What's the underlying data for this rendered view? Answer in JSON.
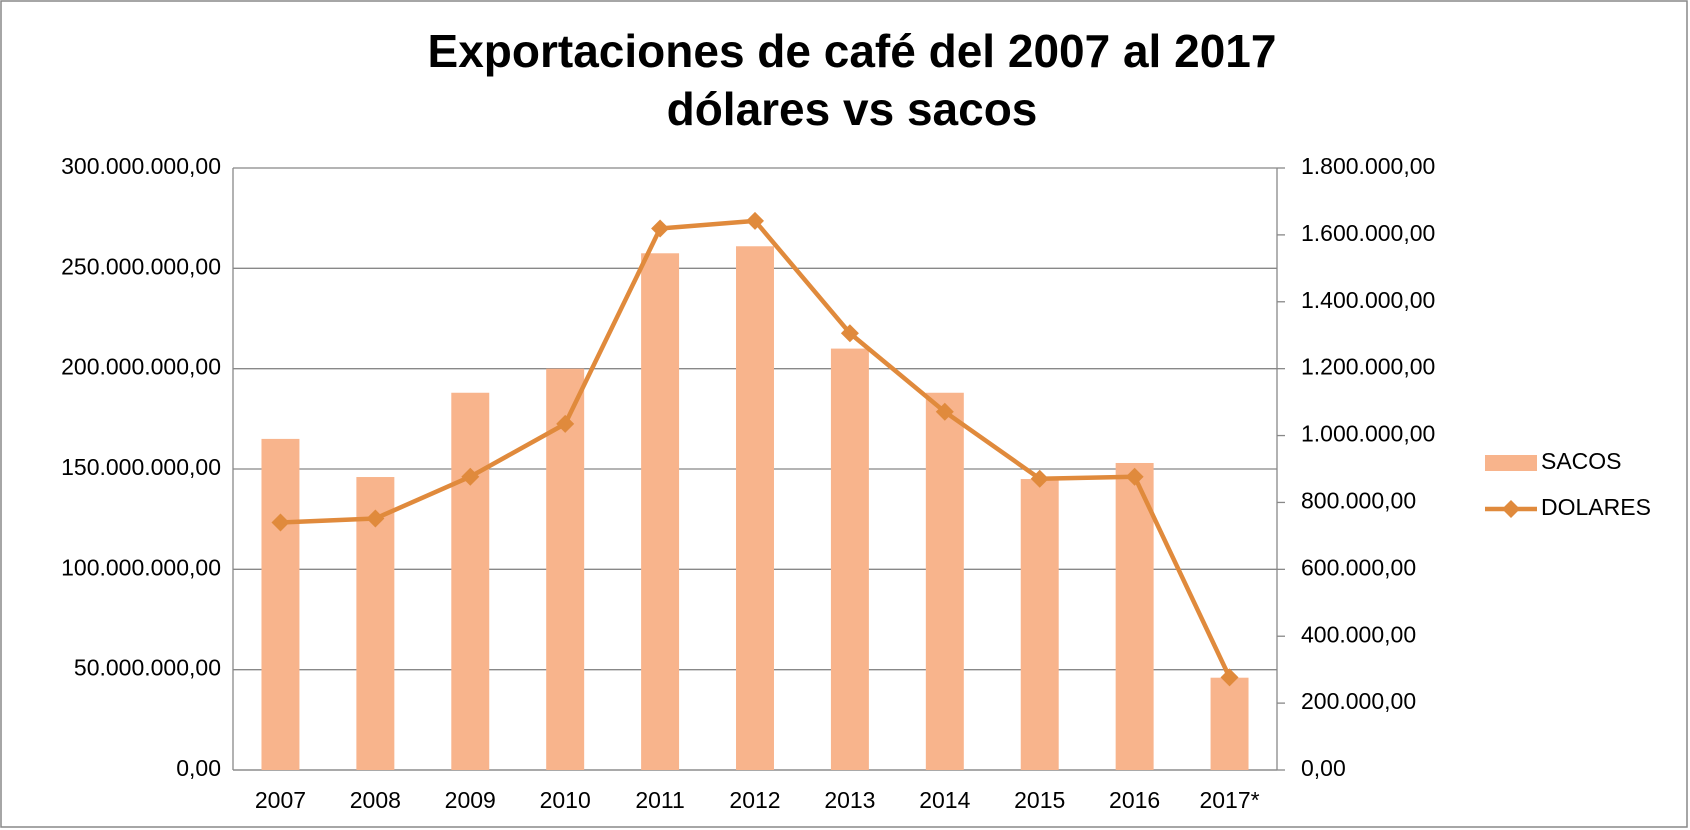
{
  "chart_data": {
    "type": "bar_line",
    "title": [
      "Exportaciones de café del 2007 al 2017",
      "dólares vs sacos"
    ],
    "categories": [
      "2007",
      "2008",
      "2009",
      "2010",
      "2011",
      "2012",
      "2013",
      "2014",
      "2015",
      "2016",
      "2017*"
    ],
    "series": [
      {
        "name": "SACOS",
        "type": "bar",
        "color": "#f8b48c",
        "values": [
          165000000,
          146000000,
          188000000,
          200000000,
          257500000,
          261000000,
          210000000,
          188000000,
          145000000,
          153000000,
          46000000
        ]
      },
      {
        "name": "DOLARES",
        "type": "line",
        "axis": "y2",
        "color": "#e08a3c",
        "values": [
          740000,
          752000,
          877000,
          1035000,
          1619000,
          1642000,
          1306000,
          1071000,
          871000,
          877000,
          277000
        ]
      }
    ],
    "ylim": [
      0,
      300000000
    ],
    "yticks": [
      {
        "value": 0,
        "label": "0,00"
      },
      {
        "value": 50000000,
        "label": "50.000.000,00"
      },
      {
        "value": 100000000,
        "label": "100.000.000,00"
      },
      {
        "value": 150000000,
        "label": "150.000.000,00"
      },
      {
        "value": 200000000,
        "label": "200.000.000,00"
      },
      {
        "value": 250000000,
        "label": "250.000.000,00"
      },
      {
        "value": 300000000,
        "label": "300.000.000,00"
      }
    ],
    "y2lim": [
      0,
      1800000
    ],
    "y2ticks": [
      {
        "value": 0,
        "label": "0,00"
      },
      {
        "value": 200000,
        "label": "200.000,00"
      },
      {
        "value": 400000,
        "label": "400.000,00"
      },
      {
        "value": 600000,
        "label": "600.000,00"
      },
      {
        "value": 800000,
        "label": "800.000,00"
      },
      {
        "value": 1000000,
        "label": "1.000.000,00"
      },
      {
        "value": 1200000,
        "label": "1.200.000,00"
      },
      {
        "value": 1400000,
        "label": "1.400.000,00"
      },
      {
        "value": 1600000,
        "label": "1.600.000,00"
      },
      {
        "value": 1800000,
        "label": "1.800.000,00"
      }
    ],
    "grid": true,
    "legend": "right"
  }
}
